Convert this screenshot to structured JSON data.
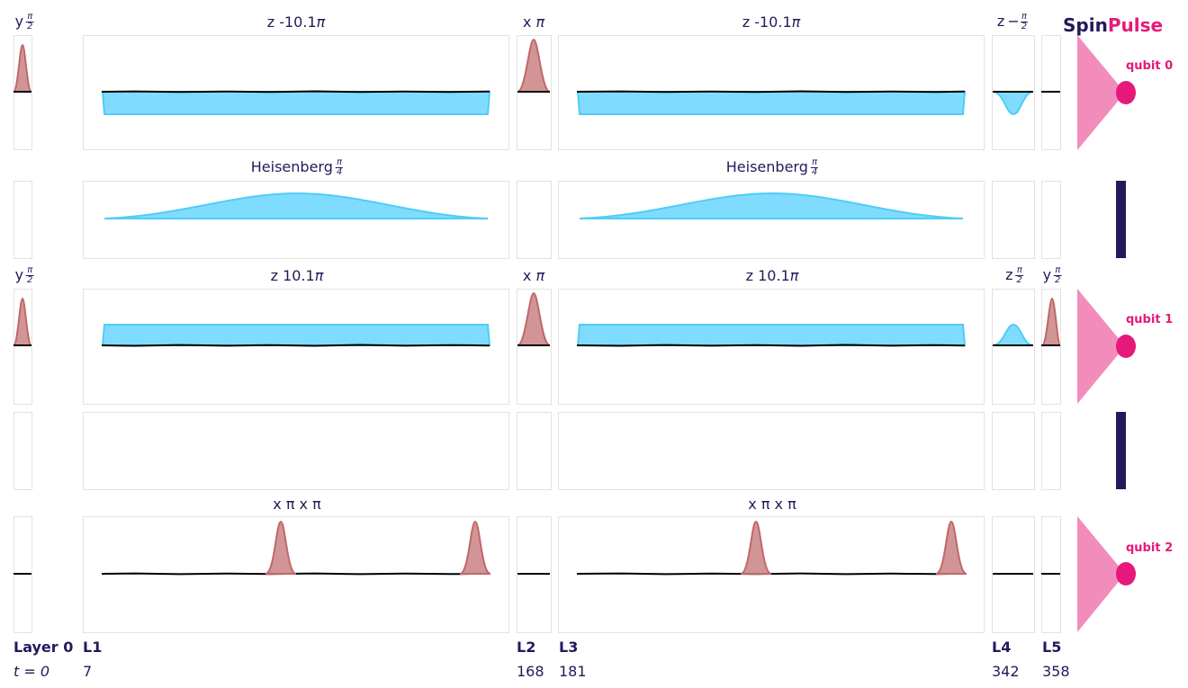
{
  "brand": {
    "spin": "Spin",
    "pulse": "Pulse"
  },
  "colors": {
    "ink": "#221a5a",
    "accent": "#e6197a",
    "cone": "#f28cbb",
    "blue_fill": "#7fdcff",
    "blue_line": "#4fcdf5",
    "red_fill": "#d29596",
    "red_line": "#c0676a"
  },
  "layers": [
    {
      "label": "Layer 0",
      "time": "t = 0"
    },
    {
      "label": "L1",
      "time": "7"
    },
    {
      "label": "L2",
      "time": "168"
    },
    {
      "label": "L3",
      "time": "181"
    },
    {
      "label": "L4",
      "time": "342"
    },
    {
      "label": "L5",
      "time": "358"
    }
  ],
  "qubits": [
    "qubit 0",
    "qubit 1",
    "qubit 2"
  ],
  "titles": {
    "q0": {
      "c0": "y",
      "c1": "z -10.1",
      "c2": "x",
      "c3": "z -10.1",
      "c4": "z"
    },
    "c01": {
      "c1": "Heisenberg",
      "c3": "Heisenberg"
    },
    "q1": {
      "c0": "y",
      "c1": "z 10.1",
      "c2": "x",
      "c3": "z 10.1",
      "c4": "z",
      "c5": "y"
    },
    "q2": {
      "c1": "x π x π",
      "c3": "x π x π"
    }
  },
  "symbols": {
    "pi": "π",
    "minus": "−",
    "two": "2",
    "four": "4"
  }
}
